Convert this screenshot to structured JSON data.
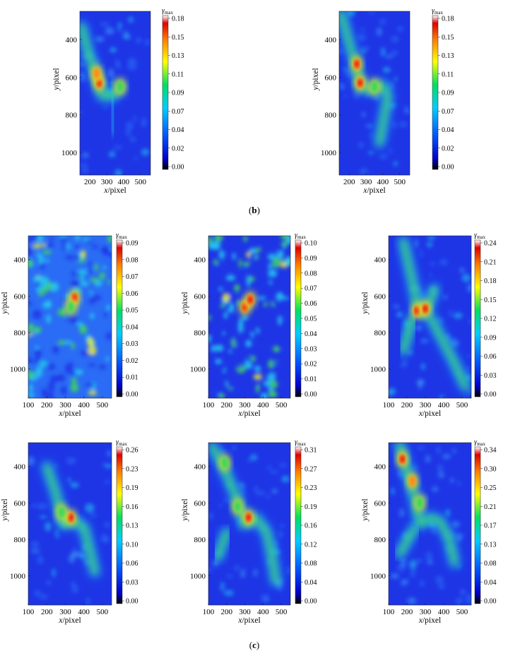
{
  "figure": {
    "panel_labels": {
      "b": "(b)",
      "c": "(c)"
    },
    "label_paren_open": "(",
    "label_paren_close": ")"
  },
  "colormap": {
    "stops": [
      "#000000",
      "#0000cc",
      "#0055ff",
      "#00ccff",
      "#00e060",
      "#ffff00",
      "#ff8000",
      "#e00000",
      "#ffffff"
    ],
    "map_colors": {
      "low": "#1e35e6",
      "cool": "#2a6cf5",
      "mid": "#23c9ee",
      "green": "#3fd65a",
      "yellow": "#e9ec24",
      "orange": "#ff8a12",
      "red": "#e3101a"
    }
  },
  "chart_data": [
    {
      "id": "b1",
      "type": "heatmap",
      "xlabel_var": "x",
      "xlabel_unit": "/pixel",
      "ylabel_var": "y",
      "ylabel_unit": "/pixel",
      "xticks": [
        "200",
        "300",
        "400",
        "500"
      ],
      "yticks": [
        "400",
        "600",
        "800",
        "1000"
      ],
      "xlim": [
        140,
        560
      ],
      "ylim": [
        250,
        1120
      ],
      "colorbar_label_symbol": "γ",
      "colorbar_label_sub": "max",
      "colorbar_ticks": [
        "0.18",
        "0.15",
        "0.13",
        "0.11",
        "0.09",
        "0.07",
        "0.04",
        "0.02",
        "0.00"
      ],
      "vmax": 0.18
    },
    {
      "id": "b2",
      "type": "heatmap",
      "xlabel_var": "x",
      "xlabel_unit": "/pixel",
      "ylabel_var": "y",
      "ylabel_unit": "/pixel",
      "xticks": [
        "200",
        "300",
        "400",
        "500"
      ],
      "yticks": [
        "400",
        "600",
        "800",
        "1000"
      ],
      "xlim": [
        140,
        560
      ],
      "ylim": [
        250,
        1120
      ],
      "colorbar_label_symbol": "γ",
      "colorbar_label_sub": "max",
      "colorbar_ticks": [
        "0.18",
        "0.15",
        "0.13",
        "0.11",
        "0.09",
        "0.07",
        "0.04",
        "0.02",
        "0.00"
      ],
      "vmax": 0.18
    },
    {
      "id": "c1",
      "type": "heatmap",
      "xlabel_var": "x",
      "xlabel_unit": "/pixel",
      "ylabel_var": "y",
      "ylabel_unit": "/pixel",
      "xticks": [
        "100",
        "200",
        "300",
        "400",
        "500"
      ],
      "yticks": [
        "400",
        "600",
        "800",
        "1000"
      ],
      "xlim": [
        100,
        550
      ],
      "ylim": [
        270,
        1160
      ],
      "colorbar_label_symbol": "γ",
      "colorbar_label_sub": "max",
      "colorbar_ticks": [
        "0.09",
        "0.08",
        "0.07",
        "0.06",
        "0.05",
        "0.04",
        "0.03",
        "0.02",
        "0.01",
        "0.00"
      ],
      "vmax": 0.09
    },
    {
      "id": "c2",
      "type": "heatmap",
      "xlabel_var": "x",
      "xlabel_unit": "/pixel",
      "ylabel_var": "y",
      "ylabel_unit": "/pixel",
      "xticks": [
        "100",
        "200",
        "300",
        "400",
        "500"
      ],
      "yticks": [
        "400",
        "600",
        "800",
        "1000"
      ],
      "xlim": [
        100,
        550
      ],
      "ylim": [
        270,
        1160
      ],
      "colorbar_label_symbol": "γ",
      "colorbar_label_sub": "max",
      "colorbar_ticks": [
        "0.10",
        "0.09",
        "0.08",
        "0.07",
        "0.06",
        "0.05",
        "0.04",
        "0.03",
        "0.02",
        "0.01",
        "0.00"
      ],
      "vmax": 0.1
    },
    {
      "id": "c3",
      "type": "heatmap",
      "xlabel_var": "x",
      "xlabel_unit": "/pixel",
      "ylabel_var": "y",
      "ylabel_unit": "/pixel",
      "xticks": [
        "100",
        "200",
        "300",
        "400",
        "500"
      ],
      "yticks": [
        "400",
        "600",
        "800",
        "1000"
      ],
      "xlim": [
        100,
        550
      ],
      "ylim": [
        270,
        1160
      ],
      "colorbar_label_symbol": "γ",
      "colorbar_label_sub": "max",
      "colorbar_ticks": [
        "0.24",
        "0.21",
        "0.18",
        "0.15",
        "0.12",
        "0.09",
        "0.06",
        "0.03",
        "0.00"
      ],
      "vmax": 0.24
    },
    {
      "id": "c4",
      "type": "heatmap",
      "xlabel_var": "x",
      "xlabel_unit": "/pixel",
      "ylabel_var": "y",
      "ylabel_unit": "/pixel",
      "xticks": [
        "100",
        "200",
        "300",
        "400",
        "500"
      ],
      "yticks": [
        "400",
        "600",
        "800",
        "1000"
      ],
      "xlim": [
        100,
        550
      ],
      "ylim": [
        270,
        1160
      ],
      "colorbar_label_symbol": "γ",
      "colorbar_label_sub": "max",
      "colorbar_ticks": [
        "0.26",
        "0.23",
        "0.19",
        "0.16",
        "0.13",
        "0.10",
        "0.06",
        "0.03",
        "0.00"
      ],
      "vmax": 0.26
    },
    {
      "id": "c5",
      "type": "heatmap",
      "xlabel_var": "x",
      "xlabel_unit": "/pixel",
      "ylabel_var": "y",
      "ylabel_unit": "/pixel",
      "xticks": [
        "100",
        "200",
        "300",
        "400",
        "500"
      ],
      "yticks": [
        "400",
        "600",
        "800",
        "1000"
      ],
      "xlim": [
        100,
        550
      ],
      "ylim": [
        270,
        1160
      ],
      "colorbar_label_symbol": "γ",
      "colorbar_label_sub": "max",
      "colorbar_ticks": [
        "0.31",
        "0.27",
        "0.23",
        "0.19",
        "0.16",
        "0.12",
        "0.08",
        "0.04",
        "0.00"
      ],
      "vmax": 0.31
    },
    {
      "id": "c6",
      "type": "heatmap",
      "xlabel_var": "x",
      "xlabel_unit": "/pixel",
      "ylabel_var": "y",
      "ylabel_unit": "/pixel",
      "xticks": [
        "100",
        "200",
        "300",
        "400",
        "500"
      ],
      "yticks": [
        "400",
        "600",
        "800",
        "1000"
      ],
      "xlim": [
        100,
        550
      ],
      "ylim": [
        270,
        1160
      ],
      "colorbar_label_symbol": "γ",
      "colorbar_label_sub": "max",
      "colorbar_ticks": [
        "0.34",
        "0.30",
        "0.25",
        "0.21",
        "0.17",
        "0.13",
        "0.08",
        "0.04",
        "0.00"
      ],
      "vmax": 0.34
    }
  ]
}
